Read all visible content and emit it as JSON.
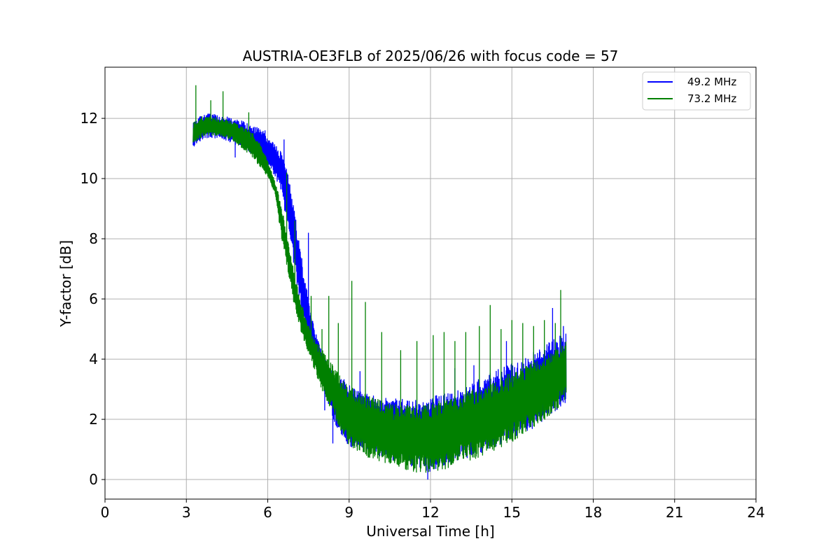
{
  "chart_data": {
    "type": "line",
    "title": "AUSTRIA-OE3FLB of 2025/06/26 with focus code = 57",
    "xlabel": "Universal Time [h]",
    "ylabel": "Y-factor [dB]",
    "xlim": [
      0,
      24
    ],
    "ylim": [
      -0.65,
      13.7
    ],
    "xticks": [
      0,
      3,
      6,
      9,
      12,
      15,
      18,
      21,
      24
    ],
    "yticks": [
      0,
      2,
      4,
      6,
      8,
      10,
      12
    ],
    "grid": true,
    "legend_position": "top-right",
    "series": [
      {
        "name": "49.2 MHz",
        "color": "#0000ff",
        "x": [
          3.25,
          3.5,
          3.75,
          4.0,
          4.25,
          4.5,
          4.75,
          5.0,
          5.25,
          5.5,
          5.75,
          6.0,
          6.25,
          6.5,
          6.75,
          7.0,
          7.25,
          7.5,
          7.75,
          8.0,
          8.25,
          8.5,
          8.75,
          9.0,
          9.5,
          10.0,
          10.5,
          11.0,
          11.5,
          12.0,
          12.5,
          13.0,
          13.5,
          14.0,
          14.5,
          15.0,
          15.5,
          16.0,
          16.5,
          17.0
        ],
        "y_low": [
          11.0,
          11.2,
          11.3,
          11.3,
          11.3,
          11.2,
          11.1,
          11.0,
          10.9,
          10.7,
          10.6,
          10.3,
          10.0,
          9.5,
          8.0,
          6.8,
          5.4,
          4.6,
          3.8,
          3.2,
          2.4,
          1.7,
          1.3,
          1.0,
          0.8,
          0.7,
          0.5,
          0.4,
          0.2,
          0.1,
          0.3,
          0.5,
          0.6,
          0.8,
          1.0,
          1.2,
          1.4,
          1.7,
          2.0,
          2.4
        ],
        "y_high": [
          11.9,
          12.1,
          12.2,
          12.2,
          12.1,
          12.1,
          12.0,
          12.0,
          11.9,
          11.8,
          11.7,
          11.5,
          11.2,
          11.0,
          10.3,
          9.0,
          7.5,
          6.0,
          5.0,
          4.3,
          3.8,
          3.5,
          3.5,
          3.3,
          3.0,
          2.9,
          2.8,
          2.8,
          2.8,
          2.9,
          3.0,
          3.1,
          3.3,
          3.6,
          3.8,
          4.0,
          4.2,
          4.5,
          4.8,
          5.0
        ],
        "spikes": [
          [
            4.8,
            10.7
          ],
          [
            5.9,
            11.6
          ],
          [
            6.6,
            11.3
          ],
          [
            7.5,
            8.2
          ],
          [
            8.1,
            2.3
          ],
          [
            8.4,
            1.2
          ],
          [
            9.4,
            3.6
          ],
          [
            11.9,
            0.0
          ],
          [
            12.9,
            3.7
          ],
          [
            13.6,
            3.8
          ],
          [
            14.8,
            4.6
          ],
          [
            16.5,
            5.7
          ],
          [
            16.9,
            5.1
          ]
        ]
      },
      {
        "name": "73.2 MHz",
        "color": "#008000",
        "x": [
          3.25,
          3.5,
          3.75,
          4.0,
          4.25,
          4.5,
          4.75,
          5.0,
          5.25,
          5.5,
          5.75,
          6.0,
          6.25,
          6.5,
          6.75,
          7.0,
          7.25,
          7.5,
          7.75,
          8.0,
          8.25,
          8.5,
          8.75,
          9.0,
          9.5,
          10.0,
          10.5,
          11.0,
          11.5,
          12.0,
          12.5,
          13.0,
          13.5,
          14.0,
          14.5,
          15.0,
          15.5,
          16.0,
          16.5,
          17.0
        ],
        "y_low": [
          11.1,
          11.3,
          11.4,
          11.4,
          11.4,
          11.3,
          11.2,
          11.0,
          10.8,
          10.6,
          10.3,
          10.0,
          9.5,
          8.0,
          6.8,
          5.6,
          4.8,
          4.1,
          3.5,
          2.9,
          2.4,
          1.9,
          1.4,
          1.0,
          0.7,
          0.5,
          0.4,
          0.2,
          0.1,
          0.1,
          0.2,
          0.4,
          0.5,
          0.7,
          0.9,
          1.1,
          1.4,
          1.7,
          2.1,
          2.5
        ],
        "y_high": [
          11.9,
          12.1,
          12.1,
          12.1,
          12.0,
          12.0,
          11.9,
          11.8,
          11.7,
          11.5,
          11.2,
          10.6,
          10.0,
          9.2,
          8.0,
          6.8,
          5.9,
          5.2,
          4.7,
          4.4,
          4.1,
          3.8,
          3.4,
          3.2,
          3.0,
          2.8,
          2.6,
          2.6,
          2.6,
          2.7,
          2.8,
          2.9,
          3.1,
          3.3,
          3.5,
          3.7,
          3.9,
          4.1,
          4.4,
          4.8
        ],
        "spikes": [
          [
            3.35,
            13.1
          ],
          [
            3.9,
            12.6
          ],
          [
            4.35,
            12.9
          ],
          [
            5.3,
            12.2
          ],
          [
            6.7,
            10.2
          ],
          [
            7.0,
            8.6
          ],
          [
            7.6,
            6.1
          ],
          [
            8.0,
            5.0
          ],
          [
            8.25,
            6.1
          ],
          [
            8.6,
            5.2
          ],
          [
            9.1,
            6.6
          ],
          [
            9.6,
            5.9
          ],
          [
            10.2,
            4.9
          ],
          [
            10.9,
            4.3
          ],
          [
            11.5,
            4.6
          ],
          [
            12.1,
            4.8
          ],
          [
            12.5,
            4.9
          ],
          [
            12.9,
            4.6
          ],
          [
            13.3,
            4.9
          ],
          [
            13.8,
            5.1
          ],
          [
            14.2,
            5.8
          ],
          [
            14.6,
            5.0
          ],
          [
            15.0,
            5.3
          ],
          [
            15.4,
            5.2
          ],
          [
            15.8,
            5.1
          ],
          [
            16.2,
            5.3
          ],
          [
            16.6,
            5.2
          ],
          [
            16.8,
            6.3
          ]
        ]
      }
    ]
  }
}
